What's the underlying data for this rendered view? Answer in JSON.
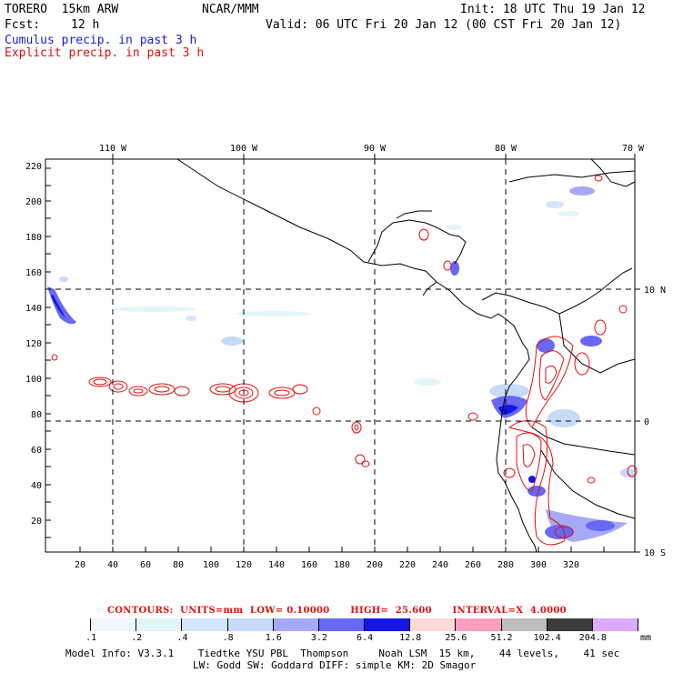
{
  "header": {
    "model": "TORERO  15km ARW",
    "org": "NCAR/MMM",
    "init": "Init: 18 UTC Thu 19 Jan 12",
    "fcst_label": "Fcst:",
    "fcst_value": "12 h",
    "valid": "Valid: 06 UTC Fri 20 Jan 12 (00 CST Fri 20 Jan 12)",
    "line1": "Cumulus precip. in past 3 h",
    "line2": "Explicit precip. in past 3 h"
  },
  "map": {
    "top_lon_labels": [
      "110 W",
      "100 W",
      "90 W",
      "80 W",
      "70 W"
    ],
    "right_lat_labels": [
      "10 N",
      "0",
      "10 S"
    ],
    "y_ticks": [
      "220",
      "200",
      "180",
      "160",
      "140",
      "120",
      "100",
      "80",
      "60",
      "40",
      "20"
    ],
    "x_ticks": [
      "20",
      "40",
      "60",
      "80",
      "100",
      "120",
      "140",
      "160",
      "180",
      "200",
      "220",
      "240",
      "260",
      "280",
      "300",
      "320"
    ]
  },
  "contours_line": {
    "text": "CONTOURS:  UNITS=mm  LOW= 0.10000      HIGH=  25.600      INTERVAL=X  4.0000"
  },
  "colorbar": {
    "labels": [
      ".1",
      ".2",
      ".4",
      ".8",
      "1.6",
      "3.2",
      "6.4",
      "12.8",
      "25.6",
      "51.2",
      "102.4",
      "204.8"
    ],
    "unit": "mm",
    "colors": [
      "#ffffff",
      "#f0f6ff",
      "#e2f5f7",
      "#d2e6fc",
      "#c7daf7",
      "#a6a9f4",
      "#6868f2",
      "#1515e8",
      "#ffd9d9",
      "#ff9dbf",
      "#bdbdbd",
      "#3c3c3c",
      "#dcaaf8"
    ]
  },
  "footer": {
    "line1": "Model Info: V3.3.1    Tiedtke YSU PBL  Thompson     Noah LSM  15 km,    44 levels,    41 sec",
    "line2": "LW: Godd SW: Goddard DIFF: simple KM: 2D Smagor"
  }
}
